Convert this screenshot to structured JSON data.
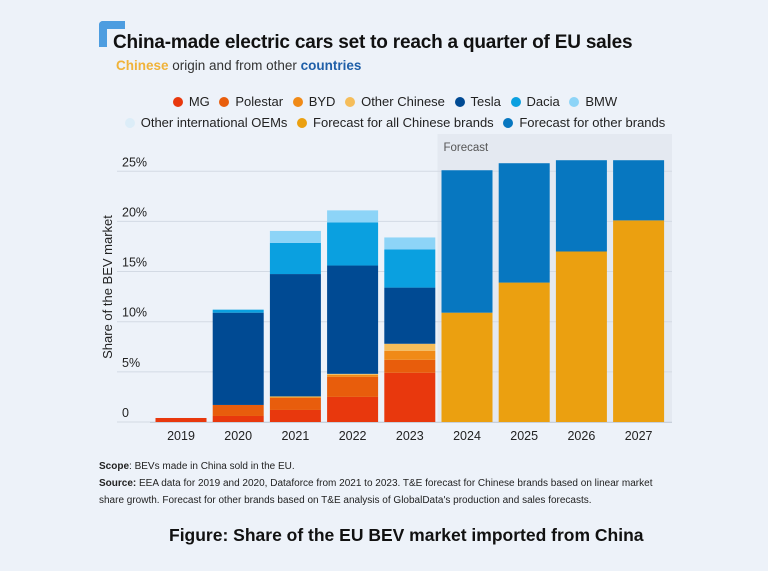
{
  "header": {
    "title": "China-made electric cars set to reach a quarter of EU sales",
    "subtitle_part1": "Chinese",
    "subtitle_part2": " origin and from other ",
    "subtitle_part3": "countries"
  },
  "footnote": {
    "scope_label": "Scope",
    "scope_text": ": BEVs made in China sold in the EU.",
    "source_label": "Source:",
    "source_text": " EEA data for 2019 and 2020, Dataforce from 2021 to 2023. T&E forecast for Chinese brands based on linear market share growth. Forecast for other brands based on T&E analysis of GlobalData's production and sales forecasts."
  },
  "caption": "Figure: Share of the EU BEV market imported from China",
  "chart_data": {
    "type": "bar",
    "stacked": true,
    "title": "China-made electric cars set to reach a quarter of EU sales",
    "subtitle": "Chinese origin and from other countries",
    "xlabel": "",
    "ylabel": "Share of the BEV market",
    "ylim": [
      0,
      27
    ],
    "yticks": [
      0,
      5,
      10,
      15,
      20,
      25
    ],
    "ytick_labels": [
      "0",
      "5%",
      "10%",
      "15%",
      "20%",
      "25%"
    ],
    "grid": true,
    "legend_position": "top-center",
    "forecast_band_label": "Forecast",
    "forecast_start": "2024",
    "categories": [
      "2019",
      "2020",
      "2021",
      "2022",
      "2023",
      "2024",
      "2025",
      "2026",
      "2027"
    ],
    "series": [
      {
        "name": "MG",
        "color": "#e8380d",
        "values": [
          0.4,
          0.6,
          1.2,
          2.5,
          4.9,
          0,
          0,
          0,
          0
        ]
      },
      {
        "name": "Polestar",
        "color": "#e85d0c",
        "values": [
          0,
          1.1,
          1.2,
          2.0,
          1.3,
          0,
          0,
          0,
          0
        ]
      },
      {
        "name": "BYD",
        "color": "#f08a17",
        "values": [
          0,
          0,
          0.1,
          0.2,
          0.9,
          0,
          0,
          0,
          0
        ]
      },
      {
        "name": "Other Chinese",
        "color": "#f5bd5a",
        "values": [
          0,
          0,
          0.05,
          0.1,
          0.7,
          0,
          0,
          0,
          0
        ]
      },
      {
        "name": "Tesla",
        "color": "#004a93",
        "values": [
          0,
          9.2,
          12.2,
          10.8,
          5.6,
          0,
          0,
          0,
          0
        ]
      },
      {
        "name": "Dacia",
        "color": "#0aa0e0",
        "values": [
          0,
          0.3,
          3.1,
          4.3,
          3.8,
          0,
          0,
          0,
          0
        ]
      },
      {
        "name": "BMW",
        "color": "#8dd4f7",
        "values": [
          0,
          0,
          1.2,
          1.2,
          1.2,
          0,
          0,
          0,
          0
        ]
      },
      {
        "name": "Other international OEMs",
        "color": "#dcedf8",
        "values": [
          0,
          0,
          0,
          0,
          0,
          0,
          0,
          0,
          0
        ]
      },
      {
        "name": "Forecast for all Chinese brands",
        "color": "#eba010",
        "values": [
          0,
          0,
          0,
          0,
          0,
          10.9,
          13.9,
          17.0,
          20.1
        ]
      },
      {
        "name": "Forecast for other brands",
        "color": "#0777c0",
        "values": [
          0,
          0,
          0,
          0,
          0,
          14.2,
          11.9,
          9.1,
          6.0
        ]
      }
    ]
  }
}
